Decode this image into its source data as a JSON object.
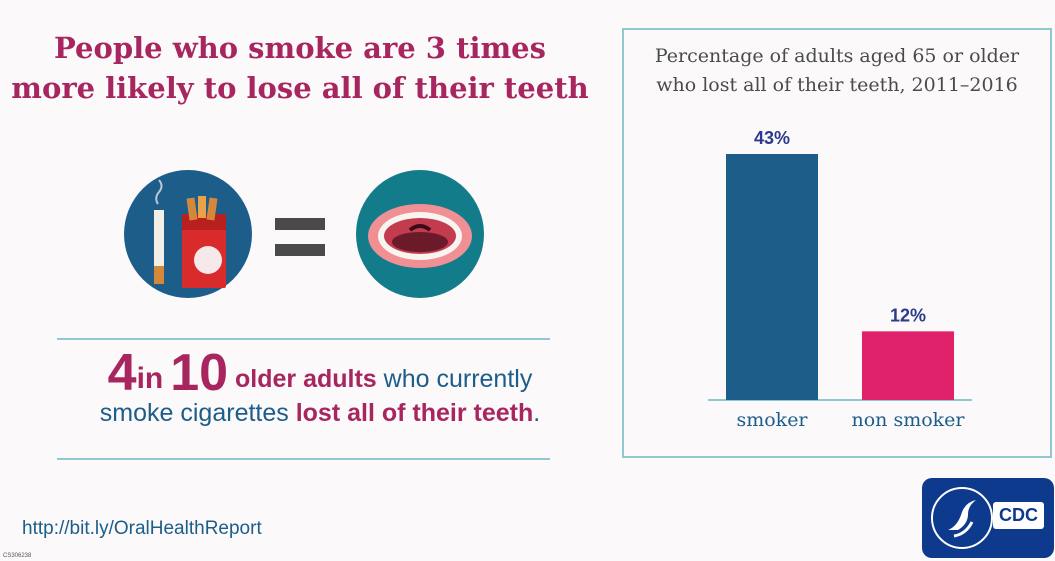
{
  "headline": {
    "line1": "People who smoke are 3 times",
    "line2": "more likely to lose all of their teeth"
  },
  "icons": {
    "left": "cigarette-pack-icon",
    "middle": "equals-icon",
    "right": "open-mouth-icon",
    "color_circle_left": "#1c5d8a",
    "color_circle_right": "#137c8a"
  },
  "stat": {
    "num1": "4",
    "word_in": "in",
    "num2": "10",
    "phrase1": "older adults",
    "phrase2": "who currently",
    "phrase3": "smoke cigarettes",
    "phrase4": "lost all of their teeth",
    "end": "."
  },
  "footer": {
    "url": "http://bit.ly/OralHealthReport",
    "code": "CS306238",
    "logo_text": "CDC"
  },
  "chart_data": {
    "type": "bar",
    "title": "Percentage of adults aged 65 or older who lost all of their teeth, 2011–2016",
    "title_line1": "Percentage of adults aged 65 or older",
    "title_line2": "who lost all of their teeth, 2011–2016",
    "categories": [
      "smoker",
      "non smoker"
    ],
    "values": [
      43,
      12
    ],
    "value_labels": [
      "43%",
      "12%"
    ],
    "colors": [
      "#1c5d8a",
      "#e0226b"
    ],
    "ylim": [
      0,
      43
    ],
    "grid": false,
    "legend": "none"
  }
}
